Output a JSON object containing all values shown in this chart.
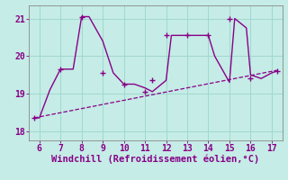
{
  "xlabel": "Windchill (Refroidissement éolien,°C)",
  "background_color": "#c5ece6",
  "grid_color": "#9fd8d0",
  "line_color": "#880088",
  "xlim": [
    5.5,
    17.5
  ],
  "ylim": [
    17.75,
    21.35
  ],
  "yticks": [
    18,
    19,
    20,
    21
  ],
  "xticks": [
    6,
    7,
    8,
    9,
    10,
    11,
    12,
    13,
    14,
    15,
    16,
    17
  ],
  "data_x": [
    5.75,
    6.0,
    6.5,
    7.0,
    7.3,
    7.6,
    8.0,
    8.35,
    9.0,
    9.5,
    10.0,
    10.5,
    11.0,
    11.35,
    12.0,
    12.25,
    13.0,
    13.3,
    14.0,
    14.3,
    15.0,
    15.25,
    15.8,
    16.0,
    16.5,
    17.0,
    17.25
  ],
  "data_y": [
    18.35,
    18.35,
    19.1,
    19.65,
    19.65,
    19.65,
    21.05,
    21.05,
    20.4,
    19.55,
    19.25,
    19.25,
    19.15,
    19.05,
    19.35,
    20.55,
    20.55,
    20.55,
    20.55,
    20.0,
    19.3,
    21.0,
    20.75,
    19.5,
    19.4,
    19.55,
    19.6
  ],
  "trend_x": [
    5.75,
    17.25
  ],
  "trend_y": [
    18.35,
    19.62
  ],
  "marker_x": [
    5.75,
    7.0,
    8.0,
    9.0,
    10.0,
    11.0,
    11.35,
    12.0,
    13.0,
    14.0,
    15.0,
    16.0,
    17.25
  ],
  "marker_y": [
    18.35,
    19.65,
    21.05,
    19.55,
    19.25,
    19.05,
    19.35,
    20.55,
    20.55,
    20.55,
    21.0,
    19.4,
    19.6
  ],
  "tick_fontsize": 7,
  "xlabel_fontsize": 7.5
}
